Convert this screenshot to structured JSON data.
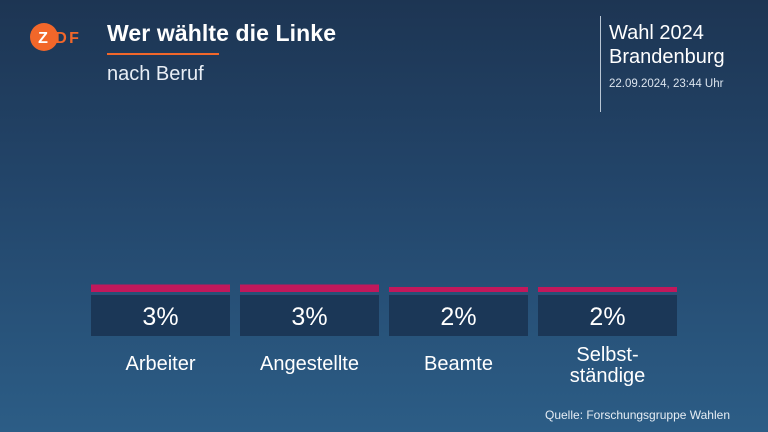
{
  "header": {
    "title": "Wer wählte die Linke",
    "subtitle": "nach Beruf",
    "election_line1": "Wahl 2024",
    "election_line2": "Brandenburg",
    "timestamp": "22.09.2024, 23:44 Uhr"
  },
  "logo": {
    "text": "ZDF",
    "icon": "zdf-logo-icon",
    "color": "#f2672a"
  },
  "colors": {
    "accent": "#f2672a",
    "bar": "#c2185b",
    "value_box": "#1b3757"
  },
  "source": "Quelle: Forschungsgruppe Wahlen",
  "chart_data": {
    "type": "bar",
    "categories": [
      "Arbeiter",
      "Angestellte",
      "Beamte",
      "Selbst-\nständige"
    ],
    "values": [
      3,
      3,
      2,
      2
    ],
    "value_labels": [
      "3%",
      "3%",
      "2%",
      "2%"
    ],
    "unit": "%",
    "title": "Wer wählte die Linke",
    "subtitle": "nach Beruf",
    "xlabel": "",
    "ylabel": "",
    "ylim": [
      0,
      100
    ],
    "grid": false,
    "legend": "none"
  }
}
